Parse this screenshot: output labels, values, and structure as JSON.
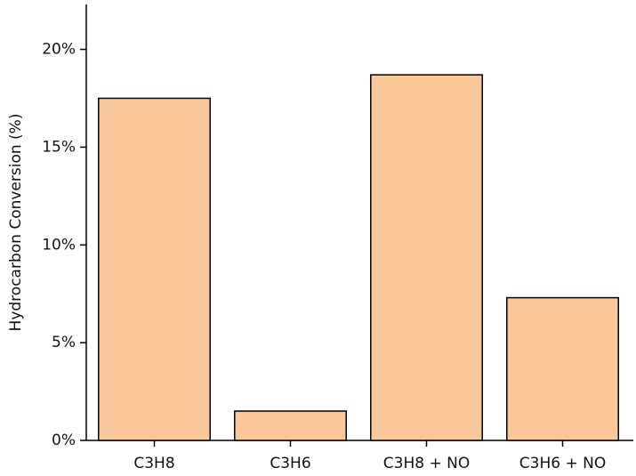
{
  "chart_data": {
    "type": "bar",
    "y_label": "Hydrocarbon Conversion (%)",
    "categories": [
      "C3H8",
      "C3H6",
      "C3H8 + NO",
      "C3H6 + NO"
    ],
    "values": [
      17.5,
      1.5,
      18.7,
      7.3
    ],
    "color": "#fac898",
    "ylim": [
      0,
      22.3
    ],
    "yticks": [
      {
        "value": 0,
        "label": "0%"
      },
      {
        "value": 5,
        "label": "5%"
      },
      {
        "value": 10,
        "label": "10%"
      },
      {
        "value": 15,
        "label": "15%"
      },
      {
        "value": 20,
        "label": "20%"
      }
    ],
    "grid": false
  }
}
